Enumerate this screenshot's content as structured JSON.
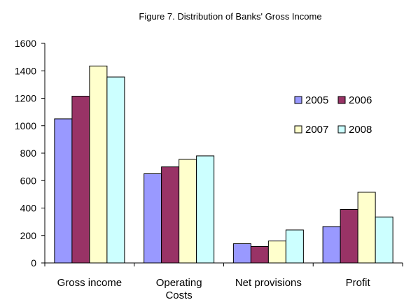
{
  "chart_data": {
    "type": "bar",
    "title": "Figure 7. Distribution of Banks' Gross Income",
    "categories": [
      "Gross income",
      "Operating Costs",
      "Net provisions",
      "Profit"
    ],
    "series": [
      {
        "name": "2005",
        "color": "#9999ff",
        "values": [
          1050,
          650,
          140,
          265
        ]
      },
      {
        "name": "2006",
        "color": "#993366",
        "values": [
          1215,
          700,
          120,
          390
        ]
      },
      {
        "name": "2007",
        "color": "#ffffcc",
        "values": [
          1435,
          755,
          160,
          515
        ]
      },
      {
        "name": "2008",
        "color": "#ccffff",
        "values": [
          1355,
          780,
          240,
          335
        ]
      }
    ],
    "ylim": [
      0,
      1600
    ],
    "yticks": [
      0,
      200,
      400,
      600,
      800,
      1000,
      1200,
      1400,
      1600
    ],
    "xlabel": "",
    "ylabel": "",
    "grid": false,
    "legend": "right, inside plot, two columns"
  }
}
